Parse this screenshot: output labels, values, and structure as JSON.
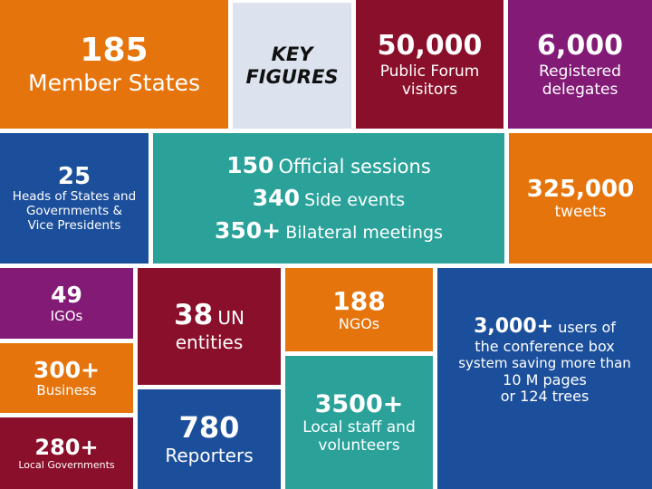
{
  "tiles": {
    "member_states": {
      "number": "185",
      "label": "Member States"
    },
    "key_figures": {
      "line1": "KEY",
      "line2": "FIGURES"
    },
    "public_forum": {
      "number": "50,000",
      "label1": "Public Forum",
      "label2": "visitors"
    },
    "delegates": {
      "number": "6,000",
      "label1": "Registered",
      "label2": "delegates"
    },
    "heads": {
      "number": "25",
      "label1": "Heads of States and",
      "label2": "Governments &",
      "label3": "Vice Presidents"
    },
    "sessions": {
      "row1_number": "150",
      "row1_label": "Official sessions",
      "row2_number": "340",
      "row2_label": "Side events",
      "row3_number": "350+",
      "row3_label": "Bilateral meetings"
    },
    "tweets": {
      "number": "325,000",
      "label": "tweets"
    },
    "igos": {
      "number": "49",
      "label": "IGOs"
    },
    "un_entities": {
      "number": "38",
      "label_inline": "UN",
      "label2": "entities"
    },
    "ngos": {
      "number": "188",
      "label": "NGOs"
    },
    "conference_box": {
      "number": "3,000+",
      "label_inline": "users of",
      "label2": "the conference box",
      "label3": "system saving more than",
      "label4": "10 M pages",
      "label5": "or 124 trees"
    },
    "business": {
      "number": "300+",
      "label": "Business"
    },
    "local_staff": {
      "number": "3500+",
      "label1": "Local staff and",
      "label2": "volunteers"
    },
    "local_governments": {
      "number": "280+",
      "label": "Local Governments"
    },
    "reporters": {
      "number": "780",
      "label": "Reporters"
    }
  },
  "colors": {
    "orange": "#e6740d",
    "pale": "#dce3ef",
    "maroon": "#8a0f2a",
    "purple": "#831a76",
    "blue": "#1c4f9b",
    "teal": "#2aa29a"
  }
}
